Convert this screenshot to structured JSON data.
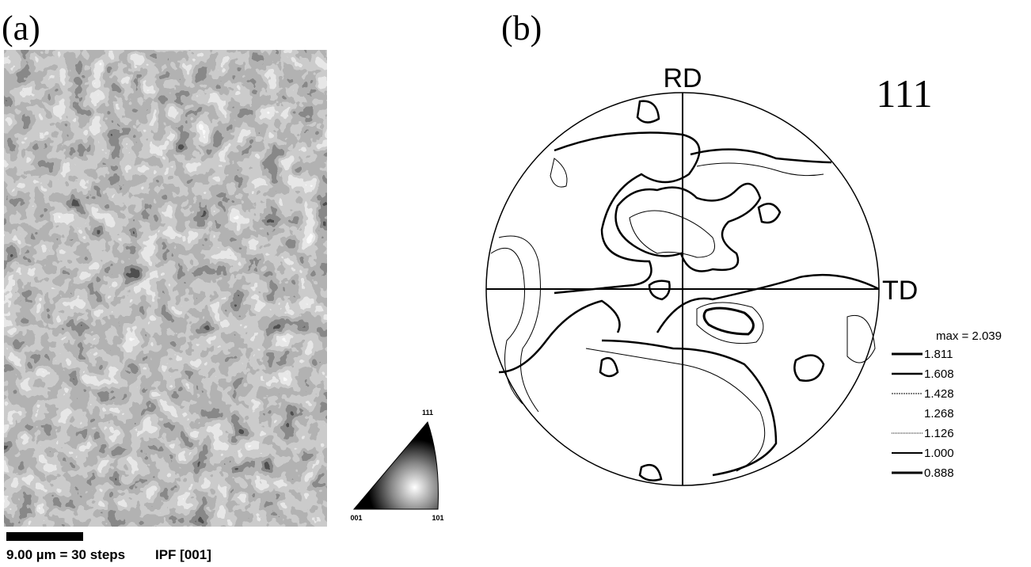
{
  "panel_a": {
    "label": "(a)",
    "scale_bar": "9.00 µm = 30 steps",
    "map_type": "IPF [001]",
    "triangle": {
      "top": "111",
      "left": "001",
      "right": "101"
    }
  },
  "panel_b": {
    "label": "(b)",
    "rd": "RD",
    "td": "TD",
    "pole": "111",
    "max": "max = 2.039",
    "levels": [
      "1.811",
      "1.608",
      "1.428",
      "1.268",
      "1.126",
      "1.000",
      "0.888"
    ]
  }
}
